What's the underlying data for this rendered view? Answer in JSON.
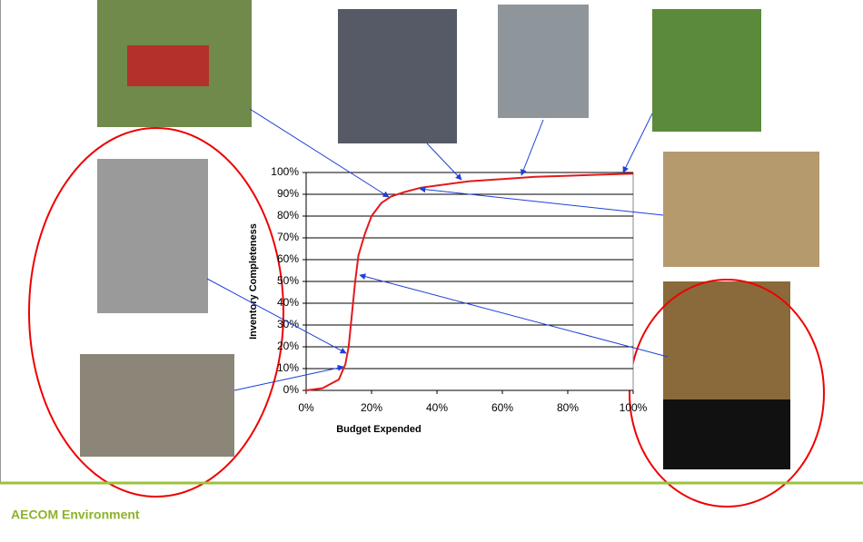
{
  "chart_data": {
    "type": "line",
    "x_label": "Budget Expended",
    "y_label": "Inventory Completeness",
    "x": [
      0,
      5,
      10,
      12,
      13,
      14,
      15,
      16,
      18,
      20,
      23,
      26,
      30,
      35,
      40,
      50,
      60,
      70,
      80,
      90,
      100
    ],
    "series": [
      {
        "color": "#e31a1c",
        "values": [
          0,
          1,
          5,
          12,
          20,
          35,
          50,
          62,
          72,
          80,
          86,
          89,
          91,
          93,
          94,
          96,
          97,
          98,
          98.5,
          99,
          99.5
        ]
      }
    ],
    "xlim": [
      0,
      100
    ],
    "ylim": [
      0,
      100
    ],
    "xticks": [
      {
        "value": 0,
        "label": "0%"
      },
      {
        "value": 20,
        "label": "20%"
      },
      {
        "value": 40,
        "label": "40%"
      },
      {
        "value": 60,
        "label": "60%"
      },
      {
        "value": 80,
        "label": "80%"
      },
      {
        "value": 100,
        "label": "100%"
      }
    ],
    "yticks": [
      {
        "value": 0,
        "label": "0%"
      },
      {
        "value": 10,
        "label": "10%"
      },
      {
        "value": 20,
        "label": "20%"
      },
      {
        "value": 30,
        "label": "30%"
      },
      {
        "value": 40,
        "label": "40%"
      },
      {
        "value": 50,
        "label": "50%"
      },
      {
        "value": 60,
        "label": "60%"
      },
      {
        "value": 70,
        "label": "70%"
      },
      {
        "value": 80,
        "label": "80%"
      },
      {
        "value": 90,
        "label": "90%"
      },
      {
        "value": 100,
        "label": "100%"
      }
    ],
    "grid": true
  },
  "footer": "AECOM Environment"
}
